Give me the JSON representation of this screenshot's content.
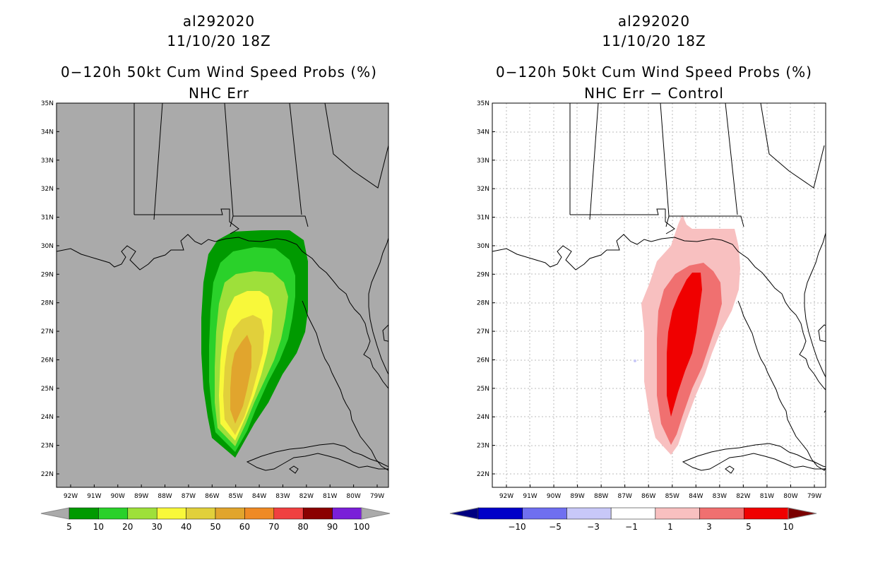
{
  "left_panel": {
    "storm_id": "al292020",
    "datetime": "11/10/20 18Z",
    "product": "0−120h 50kt Cum Wind Speed Probs (%)",
    "subtitle": "NHC Err",
    "background_color": "#aaaaaa",
    "colorbar": {
      "labels": [
        "5",
        "10",
        "20",
        "30",
        "40",
        "50",
        "60",
        "70",
        "80",
        "90",
        "100"
      ],
      "colors": [
        "#009a00",
        "#2ad12a",
        "#9ee03a",
        "#f8f83a",
        "#e1d03b",
        "#e1a52d",
        "#ef8a25",
        "#f04040",
        "#8b0000",
        "#7a1fd8"
      ],
      "low_arrow": "#aaaaaa",
      "high_arrow": "#aaaaaa"
    }
  },
  "right_panel": {
    "storm_id": "al292020",
    "datetime": "11/10/20 18Z",
    "product": "0−120h 50kt Cum Wind Speed Probs (%)",
    "subtitle": "NHC Err − Control",
    "background_color": "#ffffff",
    "colorbar": {
      "labels": [
        "−10",
        "−5",
        "−3",
        "−1",
        "1",
        "3",
        "5",
        "10"
      ],
      "colors": [
        "#0000c8",
        "#6f6ff0",
        "#c8c8f8",
        "#ffffff",
        "#f8c0c0",
        "#f07070",
        "#f00000"
      ],
      "low_arrow": "#000080",
      "high_arrow": "#7a0000"
    }
  },
  "axes": {
    "lat_labels": [
      "35N",
      "34N",
      "33N",
      "32N",
      "31N",
      "30N",
      "29N",
      "28N",
      "27N",
      "26N",
      "25N",
      "24N",
      "23N",
      "22N"
    ],
    "lon_labels": [
      "92W",
      "91W",
      "90W",
      "89W",
      "88W",
      "87W",
      "86W",
      "85W",
      "84W",
      "83W",
      "82W",
      "81W",
      "80W",
      "79W"
    ]
  }
}
